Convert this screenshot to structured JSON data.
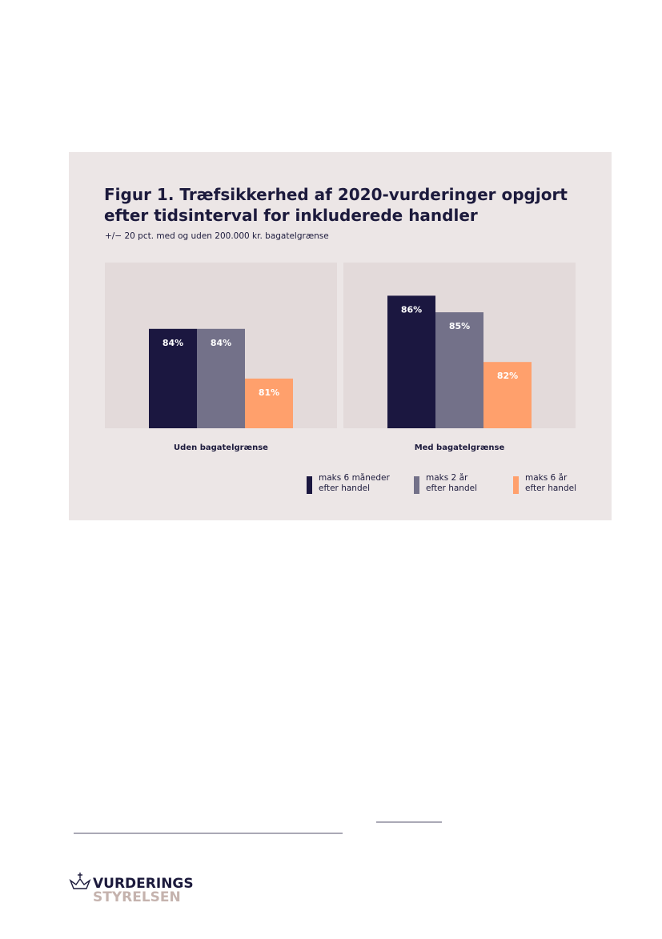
{
  "chart_data": {
    "type": "bar",
    "title": "Figur 1. Træfsikkerhed af 2020-vurderinger opgjort efter tidsinterval for inkluderede handler",
    "subtitle": "+/− 20 pct. med og uden 200.000 kr. bagatelgrænse",
    "categories": [
      "Uden bagatelgrænse",
      "Med bagatelgrænse"
    ],
    "series": [
      {
        "name": "maks 6 måneder efter handel",
        "color": "#1b1740",
        "values": [
          84,
          86
        ],
        "value_labels": [
          "84%",
          "86%"
        ]
      },
      {
        "name": "maks 2 år efter handel",
        "color": "#737189",
        "values": [
          84,
          85
        ],
        "value_labels": [
          "84%",
          "85%"
        ]
      },
      {
        "name": "maks 6 år efter handel",
        "color": "#ffa06c",
        "values": [
          81,
          82
        ],
        "value_labels": [
          "81%",
          "82%"
        ]
      }
    ],
    "ylim": [
      78,
      88
    ]
  },
  "footer": {
    "logo_top": "VURDERINGS",
    "logo_bottom": "STYRELSEN"
  }
}
